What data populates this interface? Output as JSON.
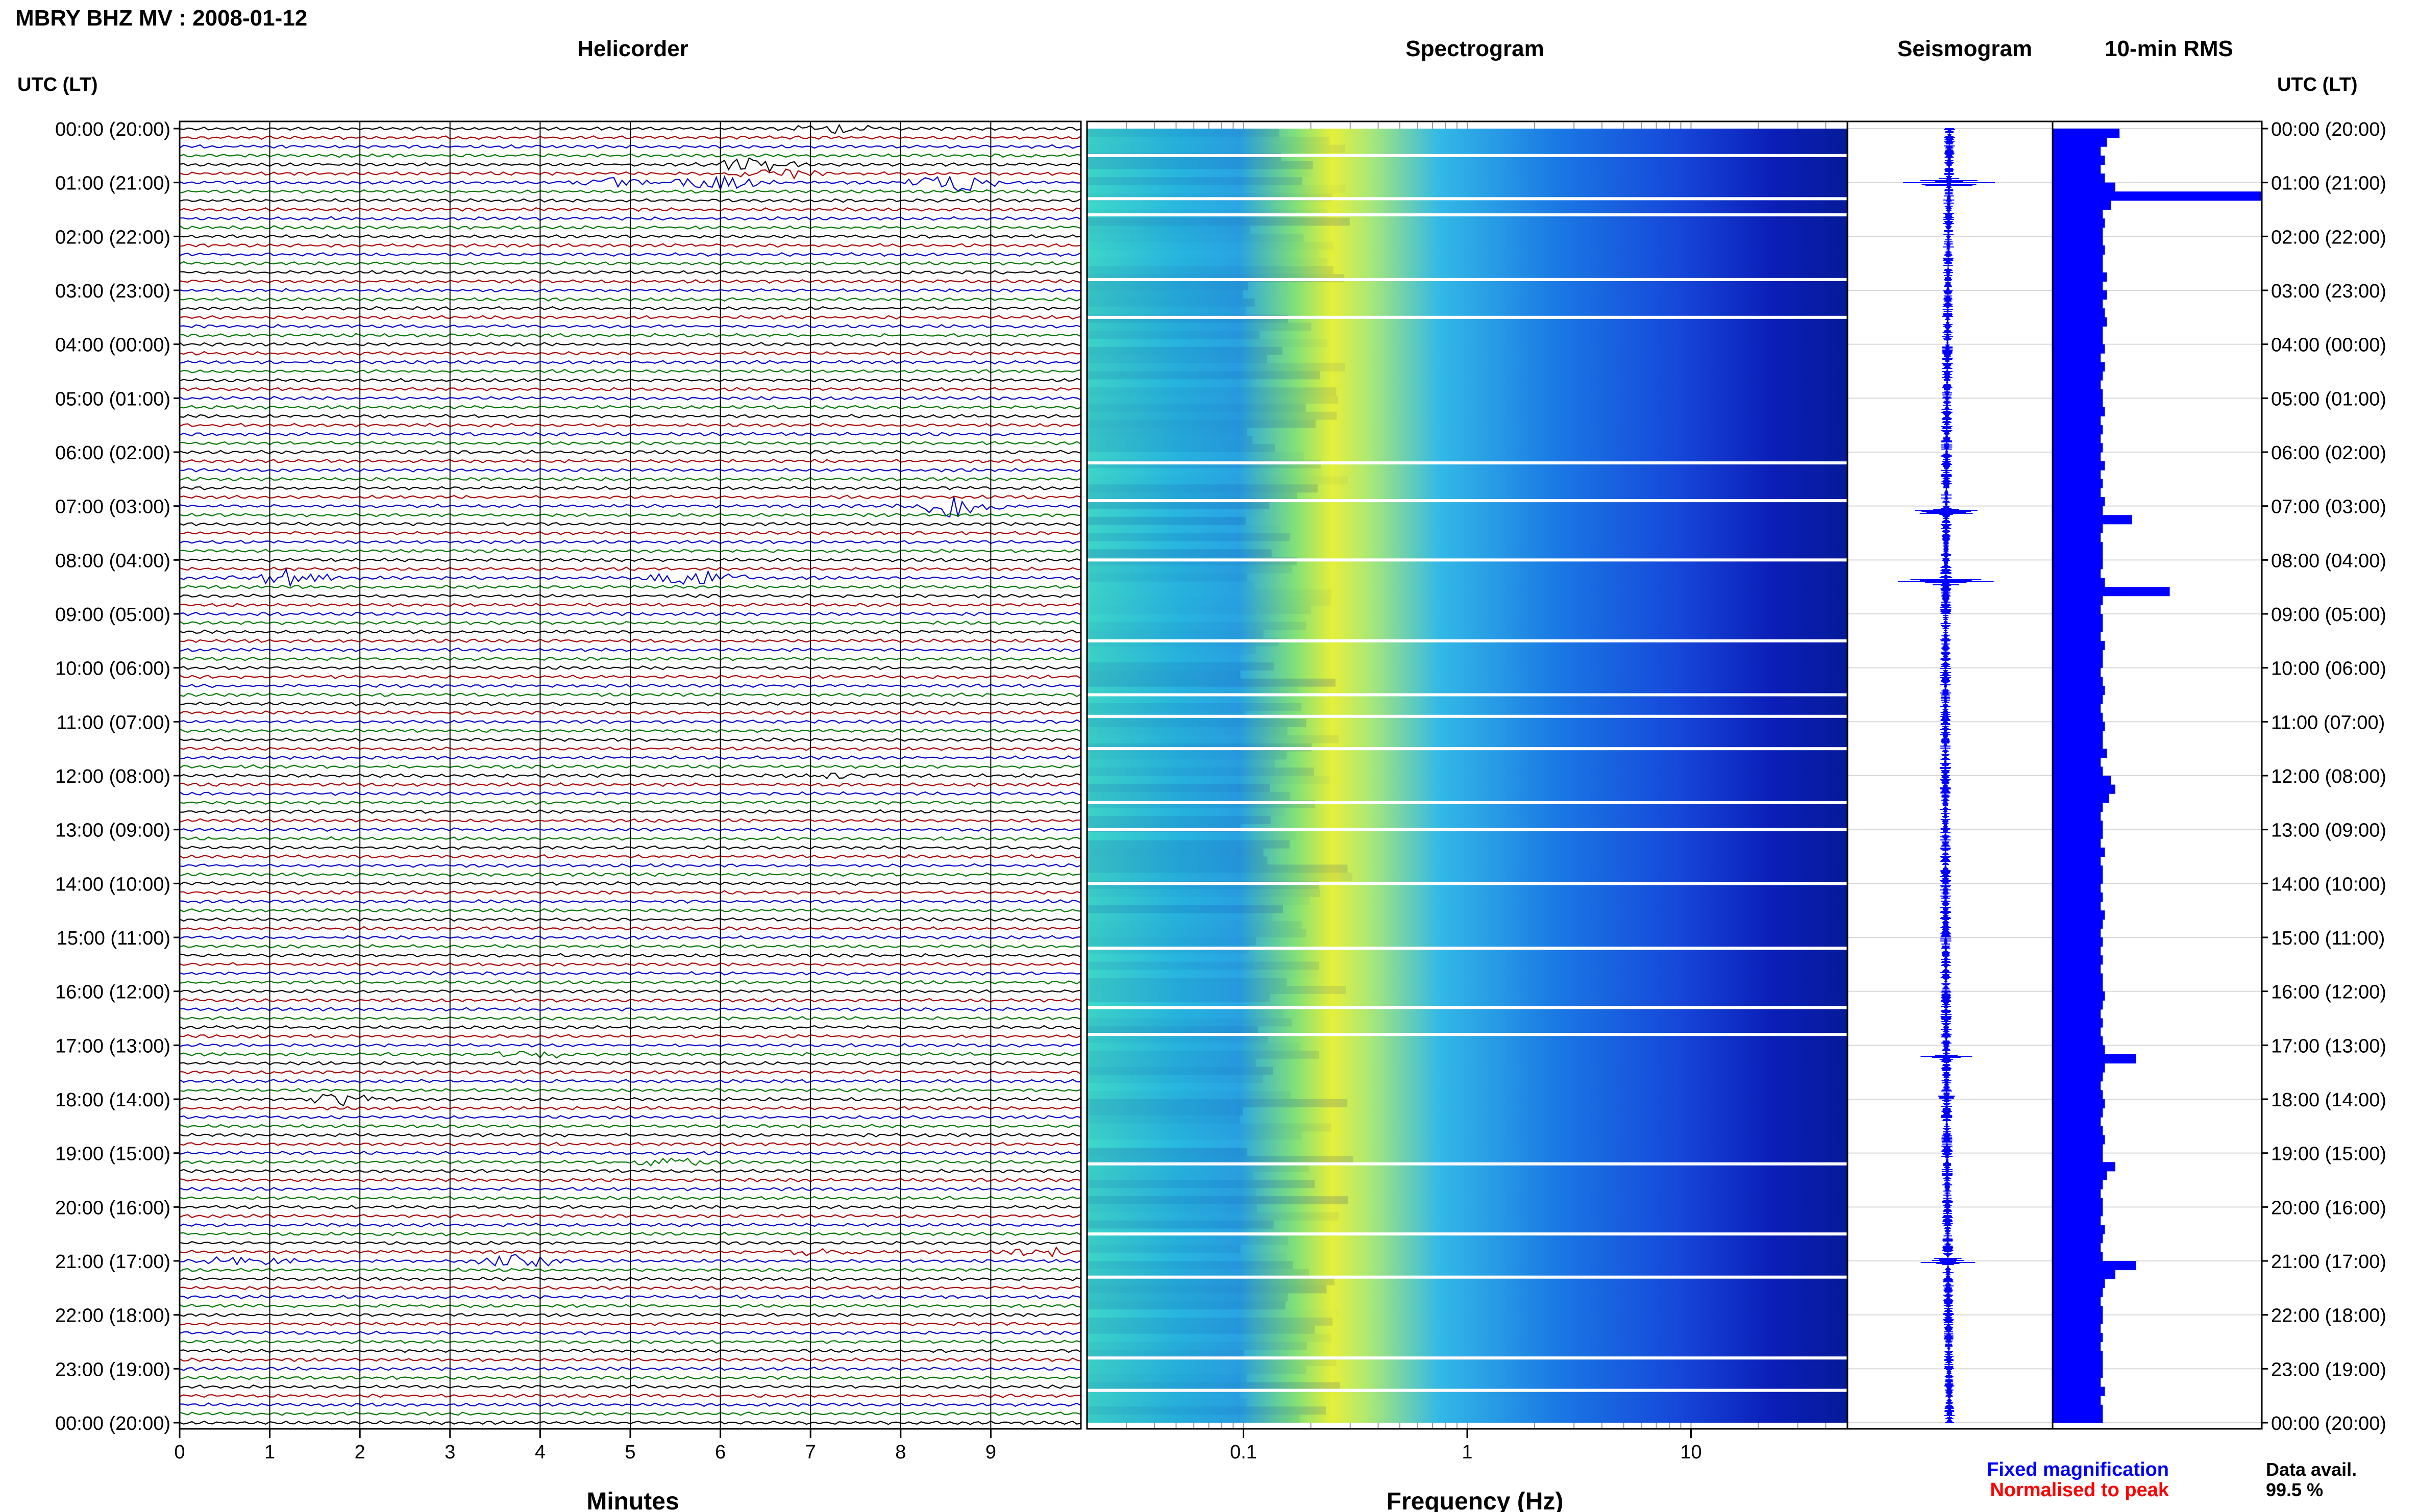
{
  "header": {
    "title": "MBRY BHZ MV : 2008-01-12",
    "panel_titles": {
      "helicorder": "Helicorder",
      "spectrogram": "Spectrogram",
      "seismogram": "Seismogram",
      "rms": "10-min RMS"
    },
    "time_axis_label": "UTC (LT)"
  },
  "legend": {
    "fixed": "Fixed magnification",
    "normalised": "Normalised to peak",
    "data_avail_label": "Data avail.",
    "data_avail_value": "99.5 %"
  },
  "colors": {
    "trace_cycle": [
      "#000000",
      "#aa0000",
      "#0000cc",
      "#007700"
    ],
    "fixed": "#0000ff",
    "normalised": "#ff0000",
    "rms_bar": "#0000ff"
  },
  "chart_data": [
    {
      "type": "line",
      "name": "helicorder",
      "title": "Helicorder",
      "xlabel": "Minutes",
      "x_ticks": [
        "0",
        "1",
        "2",
        "3",
        "4",
        "5",
        "6",
        "7",
        "8",
        "9"
      ],
      "xlim": [
        0,
        10
      ],
      "row_labels": [
        "00:00 (20:00)",
        "01:00 (21:00)",
        "02:00 (22:00)",
        "03:00 (23:00)",
        "04:00 (00:00)",
        "05:00 (01:00)",
        "06:00 (02:00)",
        "07:00 (03:00)",
        "08:00 (04:00)",
        "09:00 (05:00)",
        "10:00 (06:00)",
        "11:00 (07:00)",
        "12:00 (08:00)",
        "13:00 (09:00)",
        "14:00 (10:00)",
        "15:00 (11:00)",
        "16:00 (12:00)",
        "17:00 (13:00)",
        "18:00 (14:00)",
        "19:00 (15:00)",
        "20:00 (16:00)",
        "21:00 (17:00)",
        "22:00 (18:00)",
        "23:00 (19:00)",
        "00:00 (20:00)"
      ],
      "lines_per_hour": 6,
      "events": [
        {
          "hour": 0.0,
          "minute": 7.3,
          "amp": 3
        },
        {
          "hour": 0.67,
          "minute": 6.4,
          "amp": 5
        },
        {
          "hour": 0.83,
          "minute": 6.6,
          "amp": 4
        },
        {
          "hour": 1.0,
          "minute": 4.8,
          "amp": 4
        },
        {
          "hour": 1.0,
          "minute": 6.0,
          "amp": 7
        },
        {
          "hour": 1.0,
          "minute": 8.6,
          "amp": 6
        },
        {
          "hour": 7.0,
          "minute": 8.6,
          "amp": 9
        },
        {
          "hour": 8.33,
          "minute": 1.2,
          "amp": 5
        },
        {
          "hour": 8.33,
          "minute": 5.7,
          "amp": 7
        },
        {
          "hour": 12.0,
          "minute": 7.3,
          "amp": 2
        },
        {
          "hour": 17.17,
          "minute": 3.9,
          "amp": 3
        },
        {
          "hour": 18.0,
          "minute": 1.8,
          "amp": 4
        },
        {
          "hour": 19.17,
          "minute": 5.4,
          "amp": 3
        },
        {
          "hour": 21.0,
          "minute": 0.8,
          "amp": 4
        },
        {
          "hour": 21.0,
          "minute": 3.8,
          "amp": 4
        },
        {
          "hour": 20.83,
          "minute": 7.2,
          "amp": 3
        },
        {
          "hour": 20.83,
          "minute": 9.6,
          "amp": 3
        }
      ]
    },
    {
      "type": "heatmap",
      "name": "spectrogram",
      "title": "Spectrogram",
      "xlabel": "Frequency (Hz)",
      "x_scale": "log",
      "xlim": [
        0.02,
        50
      ],
      "x_ticks": [
        0.1,
        1,
        10
      ],
      "x_tick_labels": [
        "0.1",
        "1",
        "10"
      ],
      "peak_frequency_hz": 0.25,
      "gap_hours": [
        0.5,
        1.3,
        1.6,
        2.8,
        3.5,
        6.2,
        6.9,
        8.0,
        9.5,
        10.5,
        10.9,
        11.5,
        12.5,
        13.0,
        14.0,
        15.2,
        16.3,
        16.8,
        19.2,
        20.5,
        21.3,
        22.8,
        23.4
      ]
    },
    {
      "type": "line",
      "name": "seismogram",
      "title": "Seismogram",
      "spikes": [
        {
          "hour": 1.0,
          "amp": 1.0
        },
        {
          "hour": 7.1,
          "amp": 0.78
        },
        {
          "hour": 8.4,
          "amp": 0.9
        },
        {
          "hour": 17.2,
          "amp": 0.35
        },
        {
          "hour": 18.0,
          "amp": 0.3
        },
        {
          "hour": 21.0,
          "amp": 0.45
        }
      ]
    },
    {
      "type": "bar",
      "name": "rms",
      "title": "10-min RMS",
      "orientation": "horizontal",
      "bins_per_hour": 6,
      "hours": 24,
      "values": [
        0.32,
        0.26,
        0.23,
        0.25,
        0.23,
        0.25,
        0.3,
        1.0,
        0.28,
        0.24,
        0.25,
        0.24,
        0.24,
        0.25,
        0.24,
        0.24,
        0.26,
        0.24,
        0.26,
        0.24,
        0.25,
        0.26,
        0.24,
        0.24,
        0.25,
        0.23,
        0.25,
        0.24,
        0.23,
        0.24,
        0.24,
        0.25,
        0.23,
        0.24,
        0.23,
        0.24,
        0.23,
        0.25,
        0.23,
        0.24,
        0.23,
        0.25,
        0.24,
        0.38,
        0.24,
        0.23,
        0.24,
        0.24,
        0.24,
        0.23,
        0.25,
        0.56,
        0.24,
        0.23,
        0.24,
        0.24,
        0.23,
        0.25,
        0.24,
        0.24,
        0.23,
        0.24,
        0.25,
        0.24,
        0.23,
        0.24,
        0.25,
        0.24,
        0.24,
        0.26,
        0.23,
        0.24,
        0.28,
        0.3,
        0.27,
        0.24,
        0.23,
        0.24,
        0.24,
        0.23,
        0.25,
        0.23,
        0.24,
        0.24,
        0.23,
        0.24,
        0.23,
        0.25,
        0.24,
        0.23,
        0.24,
        0.23,
        0.24,
        0.23,
        0.24,
        0.24,
        0.25,
        0.24,
        0.23,
        0.24,
        0.23,
        0.24,
        0.25,
        0.4,
        0.25,
        0.24,
        0.23,
        0.24,
        0.25,
        0.24,
        0.23,
        0.24,
        0.25,
        0.24,
        0.24,
        0.3,
        0.26,
        0.24,
        0.23,
        0.24,
        0.24,
        0.23,
        0.25,
        0.24,
        0.23,
        0.24,
        0.4,
        0.3,
        0.25,
        0.24,
        0.23,
        0.24,
        0.24,
        0.23,
        0.24,
        0.23,
        0.24,
        0.24,
        0.24,
        0.23,
        0.25,
        0.23,
        0.24,
        0.24
      ]
    }
  ]
}
